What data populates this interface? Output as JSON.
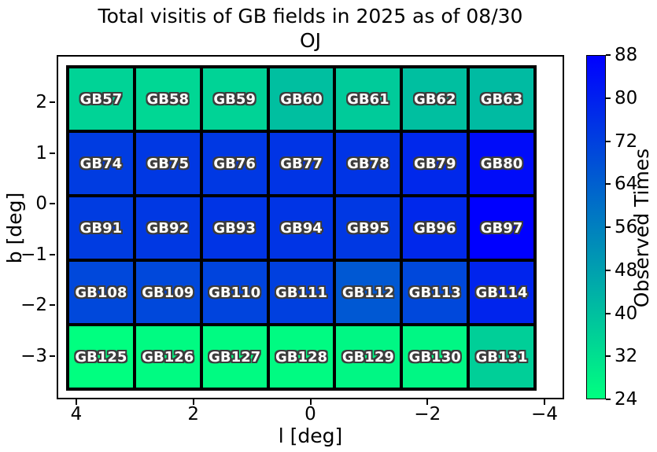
{
  "chart_data": {
    "type": "heatmap",
    "title_line1": "Total visitis of GB fields in 2025 as of 08/30",
    "title_line2": "OJ",
    "xlabel": "l [deg]",
    "ylabel": "b [deg]",
    "x_ticks": [
      {
        "label": "4",
        "value": 4
      },
      {
        "label": "2",
        "value": 2
      },
      {
        "label": "0",
        "value": 0
      },
      {
        "label": "−2",
        "value": -2
      },
      {
        "label": "−4",
        "value": -4
      }
    ],
    "y_ticks": [
      {
        "label": "2",
        "value": 2
      },
      {
        "label": "1",
        "value": 1
      },
      {
        "label": "0",
        "value": 0
      },
      {
        "label": "−1",
        "value": -1
      },
      {
        "label": "−2",
        "value": -2
      },
      {
        "label": "−3",
        "value": -3
      }
    ],
    "colorbar": {
      "label": "Observed Times",
      "vmin": 24,
      "vmax": 88,
      "ticks": [
        88,
        80,
        72,
        64,
        56,
        48,
        40,
        32,
        24
      ],
      "colormap": "winter_r",
      "color_min": "#00ff80",
      "color_mid": "#0080bf",
      "color_max": "#0000ff"
    },
    "rows": [
      {
        "fields": [
          {
            "label": "GB57",
            "value": 35
          },
          {
            "label": "GB58",
            "value": 34
          },
          {
            "label": "GB59",
            "value": 35
          },
          {
            "label": "GB60",
            "value": 40
          },
          {
            "label": "GB61",
            "value": 37
          },
          {
            "label": "GB62",
            "value": 40
          },
          {
            "label": "GB63",
            "value": 41
          }
        ]
      },
      {
        "fields": [
          {
            "label": "GB74",
            "value": 73
          },
          {
            "label": "GB75",
            "value": 74
          },
          {
            "label": "GB76",
            "value": 74
          },
          {
            "label": "GB77",
            "value": 75
          },
          {
            "label": "GB78",
            "value": 75
          },
          {
            "label": "GB79",
            "value": 78
          },
          {
            "label": "GB80",
            "value": 85
          }
        ]
      },
      {
        "fields": [
          {
            "label": "GB91",
            "value": 73
          },
          {
            "label": "GB92",
            "value": 74
          },
          {
            "label": "GB93",
            "value": 75
          },
          {
            "label": "GB94",
            "value": 75
          },
          {
            "label": "GB95",
            "value": 74
          },
          {
            "label": "GB96",
            "value": 78
          },
          {
            "label": "GB97",
            "value": 88
          }
        ]
      },
      {
        "fields": [
          {
            "label": "GB108",
            "value": 70
          },
          {
            "label": "GB109",
            "value": 70
          },
          {
            "label": "GB110",
            "value": 71
          },
          {
            "label": "GB111",
            "value": 72
          },
          {
            "label": "GB112",
            "value": 66
          },
          {
            "label": "GB113",
            "value": 70
          },
          {
            "label": "GB114",
            "value": 79
          }
        ]
      },
      {
        "fields": [
          {
            "label": "GB125",
            "value": 24
          },
          {
            "label": "GB126",
            "value": 25
          },
          {
            "label": "GB127",
            "value": 25
          },
          {
            "label": "GB128",
            "value": 25
          },
          {
            "label": "GB129",
            "value": 26
          },
          {
            "label": "GB130",
            "value": 26
          },
          {
            "label": "GB131",
            "value": 36
          }
        ]
      }
    ]
  }
}
